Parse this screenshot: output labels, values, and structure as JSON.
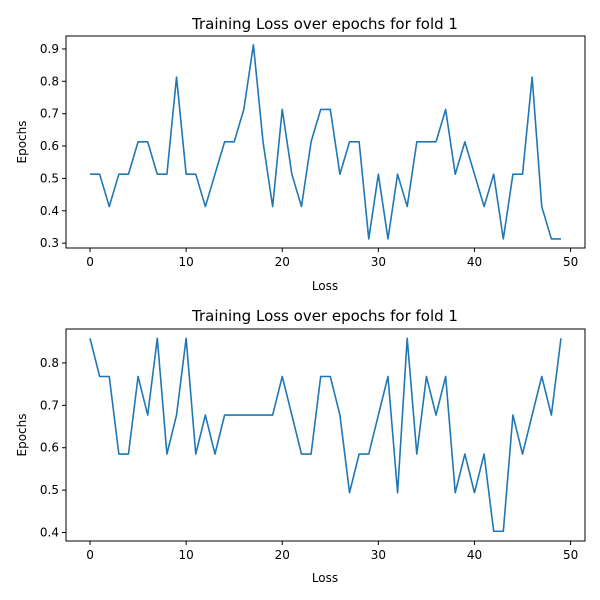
{
  "colors": {
    "series": "#1f77b4",
    "background": "#ffffff",
    "axes": "#000000"
  },
  "chart_data": [
    {
      "type": "line",
      "title": "Training Loss over epochs for fold 1",
      "xlabel": "Loss",
      "ylabel": "Epochs",
      "xlim": [
        -2.5,
        51.5
      ],
      "ylim": [
        0.285,
        0.94
      ],
      "xticks": [
        0,
        10,
        20,
        30,
        40,
        50
      ],
      "yticks": [
        0.3,
        0.4,
        0.5,
        0.6,
        0.7,
        0.8,
        0.9
      ],
      "grid": false,
      "x": [
        0,
        1,
        2,
        3,
        4,
        5,
        6,
        7,
        8,
        9,
        10,
        11,
        12,
        13,
        14,
        15,
        16,
        17,
        18,
        19,
        20,
        21,
        22,
        23,
        24,
        25,
        26,
        27,
        28,
        29,
        30,
        31,
        32,
        33,
        34,
        35,
        36,
        37,
        38,
        39,
        40,
        41,
        42,
        43,
        44,
        45,
        46,
        47,
        48,
        49
      ],
      "values": [
        0.513,
        0.513,
        0.413,
        0.513,
        0.513,
        0.613,
        0.613,
        0.513,
        0.513,
        0.813,
        0.513,
        0.513,
        0.413,
        0.513,
        0.613,
        0.613,
        0.713,
        0.913,
        0.613,
        0.413,
        0.713,
        0.513,
        0.413,
        0.613,
        0.713,
        0.713,
        0.513,
        0.613,
        0.613,
        0.313,
        0.513,
        0.313,
        0.513,
        0.413,
        0.613,
        0.613,
        0.613,
        0.713,
        0.513,
        0.613,
        0.513,
        0.413,
        0.513,
        0.313,
        0.513,
        0.513,
        0.813,
        0.413,
        0.313,
        0.313
      ]
    },
    {
      "type": "line",
      "title": "Training Loss over epochs for fold 1",
      "xlabel": "Loss",
      "ylabel": "Epochs",
      "xlim": [
        -2.5,
        51.5
      ],
      "ylim": [
        0.38,
        0.88
      ],
      "xticks": [
        0,
        10,
        20,
        30,
        40,
        50
      ],
      "yticks": [
        0.4,
        0.5,
        0.6,
        0.7,
        0.8
      ],
      "grid": false,
      "x": [
        0,
        1,
        2,
        3,
        4,
        5,
        6,
        7,
        8,
        9,
        10,
        11,
        12,
        13,
        14,
        15,
        16,
        17,
        18,
        19,
        20,
        21,
        22,
        23,
        24,
        25,
        26,
        27,
        28,
        29,
        30,
        31,
        32,
        33,
        34,
        35,
        36,
        37,
        38,
        39,
        40,
        41,
        42,
        43,
        44,
        45,
        46,
        47,
        48,
        49
      ],
      "values": [
        0.858,
        0.768,
        0.768,
        0.585,
        0.585,
        0.768,
        0.677,
        0.858,
        0.585,
        0.677,
        0.858,
        0.585,
        0.677,
        0.585,
        0.677,
        0.677,
        0.677,
        0.677,
        0.677,
        0.677,
        0.768,
        0.677,
        0.585,
        0.585,
        0.768,
        0.768,
        0.677,
        0.494,
        0.585,
        0.585,
        0.677,
        0.768,
        0.494,
        0.858,
        0.585,
        0.768,
        0.677,
        0.768,
        0.494,
        0.585,
        0.494,
        0.585,
        0.403,
        0.403,
        0.677,
        0.585,
        0.677,
        0.768,
        0.677,
        0.858
      ]
    }
  ]
}
